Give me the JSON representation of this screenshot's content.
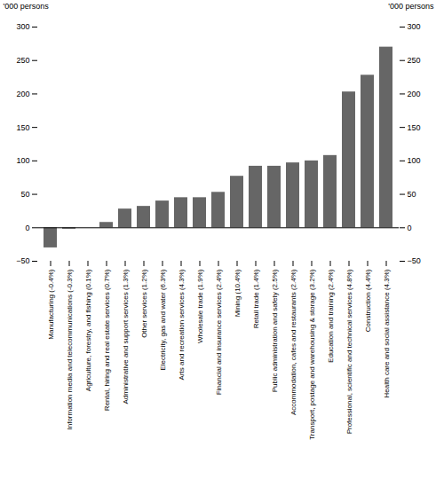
{
  "chart_data": {
    "type": "bar",
    "categories": [
      "Manufacturing (-0.4%)",
      "Information media and telecommunications (-0.3%)",
      "Agriculture, forestry, and fishing (0.1%)",
      "Rental, hiring and real estate services (0.7%)",
      "Administrative and support services (1.3%)",
      "Other services (1.2%)",
      "Electricity, gas and water (6.3%)",
      "Arts and recreation services (4.3%)",
      "Wholesale trade (1.9%)",
      "Financial and insurance services (2.4%)",
      "Mining (10.4%)",
      "Retail trade (1.4%)",
      "Public administration and safety (2.5%)",
      "Accommodation, cafes and restaurants (2.4%)",
      "Transport, postage and warehousing & storage (3.2%)",
      "Education and training (2.4%)",
      "Professional, scientific and technical services (4.8%)",
      "Construction (4.4%)",
      "Health care and social assistance (4.3%)"
    ],
    "values": [
      -30,
      -2,
      0,
      8,
      28,
      32,
      40,
      45,
      45,
      53,
      77,
      92,
      92,
      97,
      100,
      108,
      203,
      228,
      270
    ],
    "color": "#666666",
    "ylabel": "'000 persons",
    "ylim": [
      -50,
      300
    ],
    "yticks": [
      -50,
      0,
      50,
      100,
      150,
      200,
      250,
      300
    ],
    "grid": false
  }
}
